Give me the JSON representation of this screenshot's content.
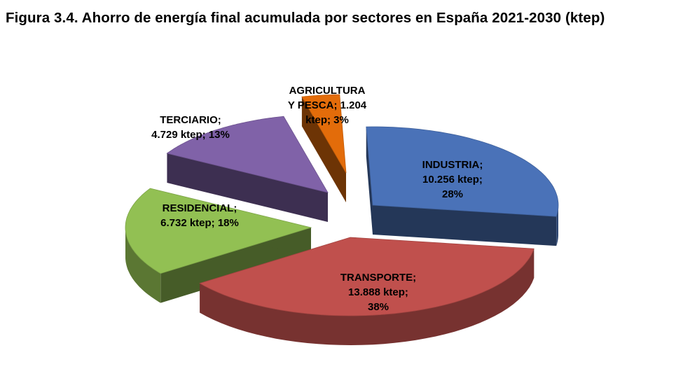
{
  "chart_data": {
    "type": "pie",
    "title": "Figura 3.4. Ahorro de energía final acumulada por sectores en España 2021-2030 (ktep)",
    "unit": "ktep",
    "slices": [
      {
        "name": "INDUSTRIA",
        "value": 10256,
        "percent": 28,
        "color": "#4a72b8",
        "label_lines": [
          "INDUSTRIA;",
          "10.256 ktep;",
          "28%"
        ]
      },
      {
        "name": "TRANSPORTE",
        "value": 13888,
        "percent": 38,
        "color": "#c0504d",
        "label_lines": [
          "TRANSPORTE;",
          "13.888 ktep;",
          "38%"
        ]
      },
      {
        "name": "RESIDENCIAL",
        "value": 6732,
        "percent": 18,
        "color": "#92c053",
        "label_lines": [
          "RESIDENCIAL;",
          "6.732 ktep; 18%"
        ]
      },
      {
        "name": "TERCIARIO",
        "value": 4729,
        "percent": 13,
        "color": "#8062a8",
        "label_lines": [
          "TERCIARIO;",
          "4.729 ktep; 13%"
        ]
      },
      {
        "name": "AGRICULTURA Y PESCA",
        "value": 1204,
        "percent": 3,
        "color": "#e36c0a",
        "label_lines": [
          "AGRICULTURA",
          "Y PESCA; 1.204",
          "ktep; 3%"
        ]
      }
    ]
  }
}
